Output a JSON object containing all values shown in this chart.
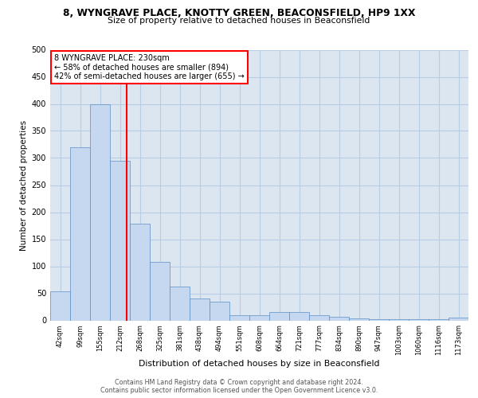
{
  "title_line1": "8, WYNGRAVE PLACE, KNOTTY GREEN, BEACONSFIELD, HP9 1XX",
  "title_line2": "Size of property relative to detached houses in Beaconsfield",
  "xlabel": "Distribution of detached houses by size in Beaconsfield",
  "ylabel": "Number of detached properties",
  "categories": [
    "42sqm",
    "99sqm",
    "155sqm",
    "212sqm",
    "268sqm",
    "325sqm",
    "381sqm",
    "438sqm",
    "494sqm",
    "551sqm",
    "608sqm",
    "664sqm",
    "721sqm",
    "777sqm",
    "834sqm",
    "890sqm",
    "947sqm",
    "1003sqm",
    "1060sqm",
    "1116sqm",
    "1173sqm"
  ],
  "values": [
    53,
    320,
    400,
    295,
    178,
    108,
    63,
    40,
    35,
    10,
    10,
    15,
    15,
    10,
    7,
    3,
    2,
    2,
    2,
    2,
    5
  ],
  "bar_color": "#c5d8f0",
  "bar_edge_color": "#5b8ec4",
  "grid_color": "#b8cce4",
  "background_color": "#dce6f1",
  "annotation_text": "8 WYNGRAVE PLACE: 230sqm\n← 58% of detached houses are smaller (894)\n42% of semi-detached houses are larger (655) →",
  "annotation_box_facecolor": "white",
  "annotation_box_edgecolor": "red",
  "vline_color": "red",
  "vline_x": 3.35,
  "footer_line1": "Contains HM Land Registry data © Crown copyright and database right 2024.",
  "footer_line2": "Contains public sector information licensed under the Open Government Licence v3.0.",
  "ylim": [
    0,
    500
  ],
  "yticks": [
    0,
    50,
    100,
    150,
    200,
    250,
    300,
    350,
    400,
    450,
    500
  ]
}
